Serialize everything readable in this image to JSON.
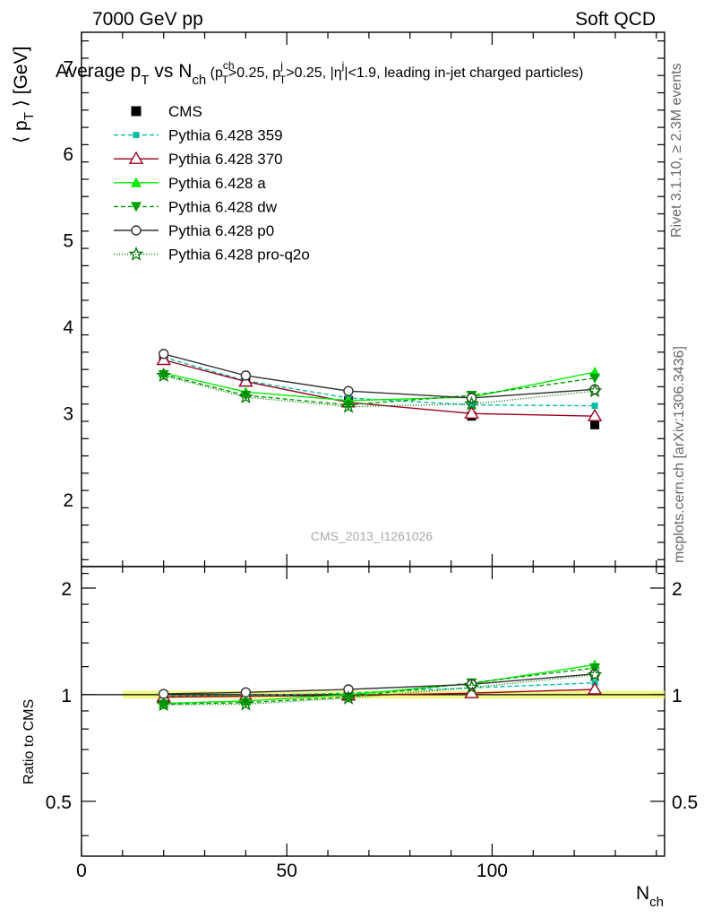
{
  "header": {
    "left": "7000 GeV pp",
    "right": "Soft QCD"
  },
  "title": {
    "main_a": "Average p",
    "main_sub1": "T",
    "main_b": " vs N",
    "main_sub2": "ch",
    "cuts": " (p",
    "cuts_sup1": "ch",
    "cuts_sub1": "T",
    "cuts_b": ">0.25, p",
    "cuts_sup2": "j",
    "cuts_sub2": "T",
    "cuts_c": ">0.25, |η",
    "cuts_sup3": "j",
    "cuts_d": "|<1.9, leading in-jet charged particles)"
  },
  "side_labels": {
    "rivet": "Rivet 3.1.10, ≥ 2.3M events",
    "mcplots": "mcplots.cern.ch [arXiv:1306.3436]"
  },
  "watermark": "CMS_2013_I1261026",
  "y_label_top": {
    "a": "⟨ p",
    "sub": "T",
    "b": " ⟩ [GeV]"
  },
  "y_label_bottom": "Ratio to CMS",
  "x_label": {
    "a": "N",
    "sub": "ch"
  },
  "chart_data": [
    {
      "panel": "main",
      "type": "line",
      "x": [
        20,
        40,
        65,
        95,
        125
      ],
      "xlim": [
        0,
        142
      ],
      "ylim": [
        1.22,
        7.4
      ],
      "x_ticks": [
        0,
        50,
        100
      ],
      "y_ticks": [
        2,
        3,
        4,
        5,
        6,
        7
      ],
      "series": [
        {
          "name": "CMS",
          "color": "#000000",
          "marker": "square",
          "dash": "",
          "values": [
            3.66,
            3.38,
            3.14,
            2.96,
            2.86
          ]
        },
        {
          "name": "Pythia 6.428 359",
          "color": "#00c0a0",
          "marker": "smallsquare",
          "dash": "5,3",
          "values": [
            3.64,
            3.37,
            3.17,
            3.09,
            3.08
          ]
        },
        {
          "name": "Pythia 6.428 370",
          "color": "#9b0020",
          "marker": "triangle-open",
          "dash": "",
          "values": [
            3.61,
            3.36,
            3.12,
            2.99,
            2.96
          ]
        },
        {
          "name": "Pythia 6.428 a",
          "color": "#00ee00",
          "marker": "triangle",
          "dash": "",
          "values": [
            3.46,
            3.24,
            3.14,
            3.18,
            3.47
          ]
        },
        {
          "name": "Pythia 6.428 dw",
          "color": "#00a000",
          "marker": "triangle-down",
          "dash": "5,3",
          "values": [
            3.44,
            3.2,
            3.09,
            3.2,
            3.4
          ]
        },
        {
          "name": "Pythia 6.428 p0",
          "color": "#333333",
          "marker": "circle-open",
          "dash": "",
          "values": [
            3.68,
            3.43,
            3.25,
            3.17,
            3.27
          ]
        },
        {
          "name": "Pythia 6.428 pro-q2o",
          "color": "#007700",
          "marker": "star",
          "dash": "1,2",
          "values": [
            3.43,
            3.18,
            3.07,
            3.1,
            3.25
          ]
        }
      ]
    },
    {
      "panel": "ratio",
      "type": "line",
      "x": [
        20,
        40,
        65,
        95,
        125
      ],
      "xlim": [
        0,
        142
      ],
      "ylim": [
        0.35,
        2.3
      ],
      "y_ticks": [
        0.5,
        1,
        2
      ],
      "series": [
        {
          "name": "Pythia 6.428 359",
          "color": "#00c0a0",
          "values": [
            0.99,
            0.995,
            1.01,
            1.045,
            1.08
          ]
        },
        {
          "name": "Pythia 6.428 370",
          "color": "#9b0020",
          "values": [
            0.985,
            0.99,
            0.995,
            1.01,
            1.035
          ]
        },
        {
          "name": "Pythia 6.428 a",
          "color": "#00ee00",
          "values": [
            0.945,
            0.96,
            1.0,
            1.075,
            1.215
          ]
        },
        {
          "name": "Pythia 6.428 dw",
          "color": "#00a000",
          "values": [
            0.94,
            0.95,
            0.985,
            1.08,
            1.19
          ]
        },
        {
          "name": "Pythia 6.428 p0",
          "color": "#333333",
          "values": [
            1.005,
            1.015,
            1.035,
            1.07,
            1.145
          ]
        },
        {
          "name": "Pythia 6.428 pro-q2o",
          "color": "#007700",
          "values": [
            0.937,
            0.94,
            0.978,
            1.048,
            1.137
          ]
        }
      ]
    }
  ]
}
